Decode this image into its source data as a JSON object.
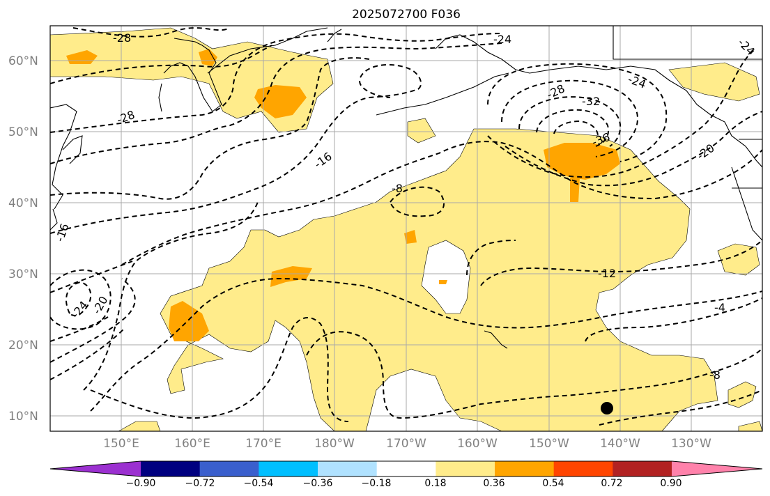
{
  "title": "2025072700 F036",
  "lat_labels": [
    "60°N",
    "50°N",
    "40°N",
    "30°N",
    "20°N",
    "10°N"
  ],
  "lon_labels": [
    "150°E",
    "160°E",
    "170°E",
    "180°W",
    "170°W",
    "160°W",
    "150°W",
    "140°W",
    "130°W"
  ],
  "contour_labels": [
    "-28",
    "-24",
    "-24",
    "-28",
    "-32",
    "-36",
    "-28",
    "-16",
    "-8",
    "-20",
    "-16",
    "-24",
    "-20",
    "-24",
    "-12",
    "-4",
    "-8"
  ],
  "colorbar": {
    "colors": [
      "#9b30d0",
      "#000080",
      "#3a5fcd",
      "#00bfff",
      "#b0e2ff",
      "#ffffff",
      "#ffec8b",
      "#ffa500",
      "#ff4500",
      "#b22222",
      "#ff82ab"
    ],
    "tick_labels": [
      "−0.90",
      "−0.72",
      "−0.54",
      "−0.36",
      "−0.18",
      "0.18",
      "0.36",
      "0.54",
      "0.72",
      "0.90"
    ]
  },
  "fill_colors": {
    "light": "#ffec8b",
    "orange": "#ffa500"
  }
}
